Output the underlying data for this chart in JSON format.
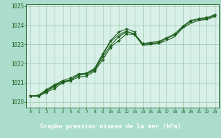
{
  "title": "Graphe pression niveau de la mer (hPa)",
  "fig_background": "#aaddcc",
  "plot_background": "#d8f0e8",
  "grid_color": "#88bb99",
  "line_color": "#1a5c1a",
  "marker_color": "#1a5c1a",
  "label_bg": "#3a7a3a",
  "label_fg": "#ffffff",
  "xlim": [
    -0.5,
    23.5
  ],
  "ylim": [
    1019.7,
    1025.1
  ],
  "yticks": [
    1020,
    1021,
    1022,
    1023,
    1024,
    1025
  ],
  "xticks": [
    0,
    1,
    2,
    3,
    4,
    5,
    6,
    7,
    8,
    9,
    10,
    11,
    12,
    13,
    14,
    15,
    16,
    17,
    18,
    19,
    20,
    21,
    22,
    23
  ],
  "series1_x": [
    0,
    1,
    2,
    3,
    4,
    5,
    6,
    7,
    8,
    9,
    10,
    11,
    12,
    13,
    14,
    15,
    16,
    17,
    18,
    19,
    20,
    21,
    22,
    23
  ],
  "series1_y": [
    1020.3,
    1020.3,
    1020.5,
    1020.7,
    1021.0,
    1021.1,
    1021.3,
    1021.35,
    1021.6,
    1022.2,
    1022.85,
    1023.2,
    1023.55,
    1023.5,
    1023.0,
    1023.05,
    1023.1,
    1023.3,
    1023.5,
    1023.9,
    1024.2,
    1024.3,
    1024.35,
    1024.5
  ],
  "series2_x": [
    0,
    1,
    2,
    3,
    4,
    5,
    6,
    7,
    8,
    9,
    10,
    11,
    12,
    13,
    14,
    15,
    16,
    17,
    18,
    19,
    20,
    21,
    22,
    23
  ],
  "series2_y": [
    1020.3,
    1020.3,
    1020.55,
    1020.8,
    1021.05,
    1021.15,
    1021.4,
    1021.45,
    1021.65,
    1022.35,
    1022.95,
    1023.4,
    1023.65,
    1023.55,
    1023.05,
    1023.1,
    1023.15,
    1023.35,
    1023.55,
    1023.95,
    1024.25,
    1024.35,
    1024.4,
    1024.55
  ],
  "series3_x": [
    0,
    1,
    2,
    3,
    4,
    5,
    6,
    7,
    8,
    9,
    10,
    11,
    12,
    13,
    14,
    15,
    16,
    17,
    18,
    19,
    20,
    21,
    22,
    23
  ],
  "series3_y": [
    1020.3,
    1020.35,
    1020.6,
    1020.85,
    1021.05,
    1021.15,
    1021.4,
    1021.5,
    1021.7,
    1022.45,
    1023.15,
    1023.5,
    1023.7,
    1023.5,
    1022.95,
    1023.0,
    1023.05,
    1023.2,
    1023.4,
    1023.85,
    1024.1,
    1024.25,
    1024.3,
    1024.45
  ],
  "series4_x": [
    0,
    1,
    2,
    3,
    4,
    5,
    6,
    7,
    8,
    9,
    10,
    11,
    12,
    13
  ],
  "series4_y": [
    1020.3,
    1020.35,
    1020.65,
    1020.9,
    1021.1,
    1021.25,
    1021.45,
    1021.5,
    1021.75,
    1022.5,
    1023.2,
    1023.65,
    1023.8,
    1023.65
  ]
}
